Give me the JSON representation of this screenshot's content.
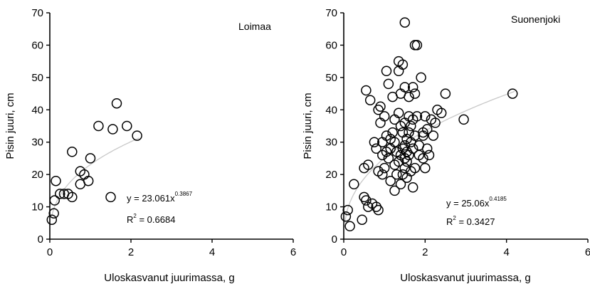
{
  "chart_data": [
    {
      "type": "scatter",
      "title": "Loimaa",
      "xlabel": "Uloskasvanut juurimassa, g",
      "ylabel": "Pisin juuri, cm",
      "xlim": [
        0,
        6
      ],
      "ylim": [
        0,
        70
      ],
      "xticks": [
        "0",
        "2",
        "4",
        "6"
      ],
      "yticks": [
        "0",
        "10",
        "20",
        "30",
        "40",
        "50",
        "60",
        "70"
      ],
      "grid": false,
      "equation": {
        "y": "y = 23.061x",
        "exponent": "0.3867",
        "r2_prefix": "R",
        "r2_sup": "2",
        "r2_value": " = 0.6684"
      },
      "trend": {
        "coef": 23.061,
        "exp": 0.3867,
        "x_range": [
          0.05,
          2.2
        ]
      },
      "points": [
        [
          0.05,
          6
        ],
        [
          0.1,
          8
        ],
        [
          0.12,
          12
        ],
        [
          0.15,
          18
        ],
        [
          0.25,
          14
        ],
        [
          0.35,
          14
        ],
        [
          0.45,
          14
        ],
        [
          0.55,
          13
        ],
        [
          0.55,
          27
        ],
        [
          0.75,
          17
        ],
        [
          0.75,
          21
        ],
        [
          0.85,
          20
        ],
        [
          0.95,
          18
        ],
        [
          1.0,
          25
        ],
        [
          1.2,
          35
        ],
        [
          1.5,
          13
        ],
        [
          1.55,
          34
        ],
        [
          1.65,
          42
        ],
        [
          1.9,
          35
        ],
        [
          2.15,
          32
        ]
      ]
    },
    {
      "type": "scatter",
      "title": "Suonenjoki",
      "xlabel": "Uloskasvanut juurimassa, g",
      "ylabel": "Pisin juuri, cm",
      "xlim": [
        0,
        6
      ],
      "ylim": [
        0,
        70
      ],
      "xticks": [
        "0",
        "2",
        "4",
        "6"
      ],
      "yticks": [
        "0",
        "10",
        "20",
        "30",
        "40",
        "50",
        "60",
        "70"
      ],
      "grid": false,
      "equation": {
        "y": "y = 25.06x",
        "exponent": "0.4185",
        "r2_prefix": "R",
        "r2_sup": "2",
        "r2_value": " = 0.3427"
      },
      "trend": {
        "coef": 25.06,
        "exp": 0.4185,
        "x_range": [
          0.02,
          4.2
        ]
      },
      "points": [
        [
          0.05,
          7
        ],
        [
          0.1,
          9
        ],
        [
          0.15,
          4
        ],
        [
          0.25,
          17
        ],
        [
          0.45,
          6
        ],
        [
          0.5,
          13
        ],
        [
          0.55,
          12
        ],
        [
          0.6,
          10
        ],
        [
          0.7,
          11
        ],
        [
          0.8,
          10
        ],
        [
          0.85,
          9
        ],
        [
          0.5,
          22
        ],
        [
          0.6,
          23
        ],
        [
          0.55,
          46
        ],
        [
          0.65,
          43
        ],
        [
          0.75,
          30
        ],
        [
          0.8,
          28
        ],
        [
          0.85,
          40
        ],
        [
          0.9,
          41
        ],
        [
          0.9,
          36
        ],
        [
          0.95,
          30
        ],
        [
          0.95,
          20
        ],
        [
          1.0,
          38
        ],
        [
          1.0,
          22
        ],
        [
          1.05,
          52
        ],
        [
          1.05,
          32
        ],
        [
          1.1,
          48
        ],
        [
          1.1,
          25
        ],
        [
          1.15,
          28
        ],
        [
          1.15,
          18
        ],
        [
          1.2,
          44
        ],
        [
          1.2,
          33
        ],
        [
          1.25,
          30
        ],
        [
          1.25,
          23
        ],
        [
          1.25,
          15
        ],
        [
          1.3,
          27
        ],
        [
          1.3,
          20
        ],
        [
          1.35,
          55
        ],
        [
          1.35,
          52
        ],
        [
          1.35,
          39
        ],
        [
          1.4,
          45
        ],
        [
          1.4,
          35
        ],
        [
          1.4,
          26
        ],
        [
          1.4,
          17
        ],
        [
          1.45,
          54
        ],
        [
          1.45,
          33
        ],
        [
          1.45,
          28
        ],
        [
          1.5,
          67
        ],
        [
          1.5,
          47
        ],
        [
          1.5,
          36
        ],
        [
          1.5,
          29
        ],
        [
          1.5,
          25
        ],
        [
          1.5,
          22
        ],
        [
          1.55,
          31
        ],
        [
          1.55,
          27
        ],
        [
          1.55,
          24
        ],
        [
          1.6,
          44
        ],
        [
          1.6,
          38
        ],
        [
          1.6,
          33
        ],
        [
          1.6,
          26
        ],
        [
          1.65,
          30
        ],
        [
          1.65,
          21
        ],
        [
          1.7,
          47
        ],
        [
          1.7,
          37
        ],
        [
          1.7,
          28
        ],
        [
          1.7,
          16
        ],
        [
          1.75,
          60
        ],
        [
          1.75,
          45
        ],
        [
          1.75,
          32
        ],
        [
          1.8,
          60
        ],
        [
          1.8,
          38
        ],
        [
          1.85,
          26
        ],
        [
          1.9,
          50
        ],
        [
          1.95,
          33
        ],
        [
          1.95,
          32
        ],
        [
          2.0,
          38
        ],
        [
          2.0,
          22
        ],
        [
          2.05,
          28
        ],
        [
          2.1,
          26
        ],
        [
          2.15,
          37
        ],
        [
          2.2,
          32
        ],
        [
          2.25,
          36
        ],
        [
          2.3,
          40
        ],
        [
          2.4,
          39
        ],
        [
          2.5,
          45
        ],
        [
          2.95,
          37
        ],
        [
          4.15,
          45
        ],
        [
          0.85,
          21
        ],
        [
          0.95,
          26
        ],
        [
          1.05,
          27
        ],
        [
          1.15,
          31
        ],
        [
          1.25,
          37
        ],
        [
          1.35,
          24
        ],
        [
          1.45,
          20
        ],
        [
          1.55,
          19
        ],
        [
          1.65,
          35
        ],
        [
          1.75,
          22
        ],
        [
          1.85,
          29
        ],
        [
          1.95,
          25
        ],
        [
          2.05,
          34
        ]
      ]
    }
  ]
}
